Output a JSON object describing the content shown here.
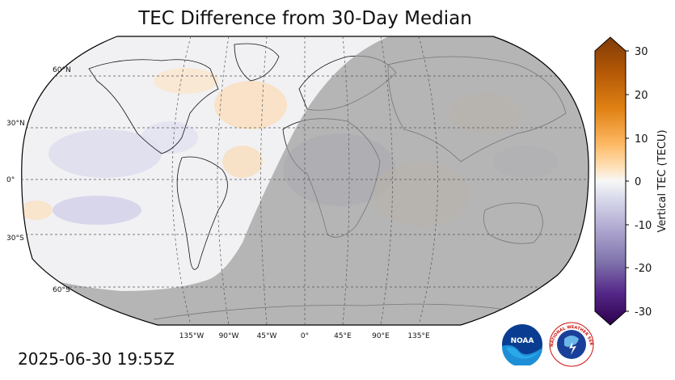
{
  "title": "TEC Difference from 30-Day Median",
  "timestamp": "2025-06-30 19:55Z",
  "latitude_labels": [
    "60°N",
    "30°N",
    "0°",
    "30°S",
    "60°S"
  ],
  "longitude_labels": [
    "135°W",
    "90°W",
    "45°W",
    "0°",
    "45°E",
    "90°E",
    "135°E"
  ],
  "colorbar": {
    "label": "Vertical TEC (TECU)",
    "ticks": [
      "30",
      "20",
      "10",
      "0",
      "-10",
      "-20",
      "-30"
    ],
    "range": [
      -30,
      30
    ],
    "colors_high_to_low": [
      "#7f3b08",
      "#b35806",
      "#e08214",
      "#fdb863",
      "#fee0b6",
      "#f7f7f7",
      "#d8daeb",
      "#b2abd2",
      "#8073ac",
      "#542788",
      "#2d004b"
    ]
  },
  "colors": {
    "night_shade": "#9e9e9e",
    "background": "#ffffff"
  },
  "logos": {
    "noaa": "NOAA",
    "nws": "NATIONAL WEATHER SERVICE"
  }
}
